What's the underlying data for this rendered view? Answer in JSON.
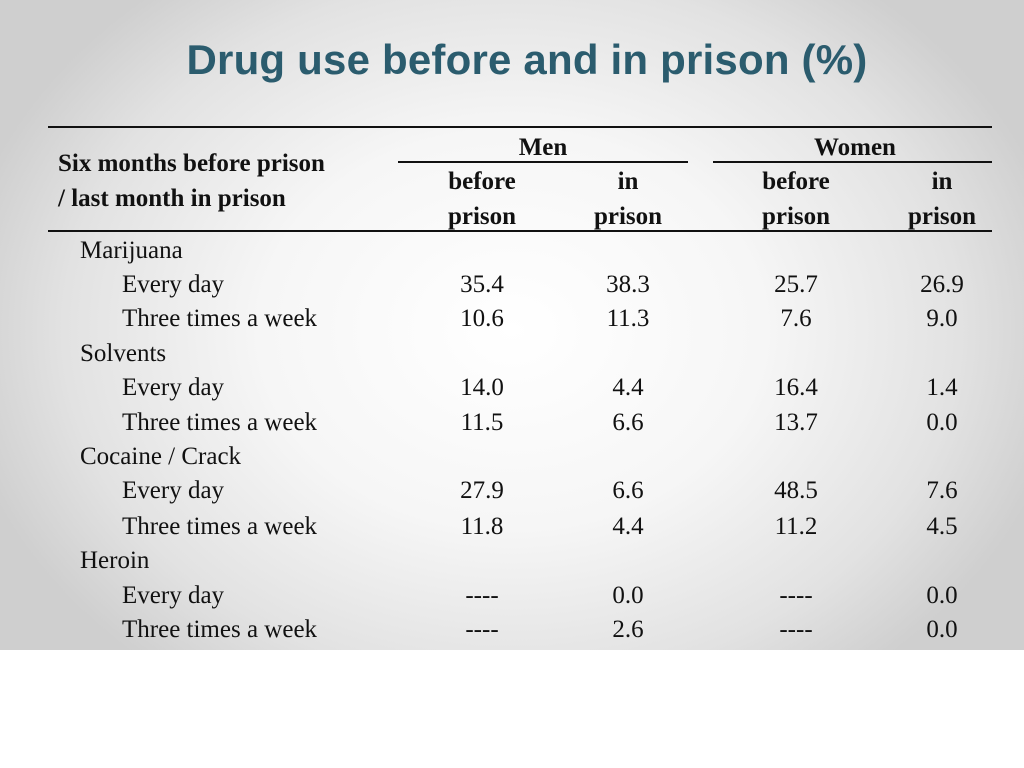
{
  "slide": {
    "title": "Drug use before and in prison (%)"
  },
  "chart_data": {
    "type": "table",
    "row_header": [
      "Six months before prison",
      "/ last month in prison"
    ],
    "groups": [
      {
        "name": "Men",
        "columns": [
          [
            "before",
            "prison"
          ],
          [
            "in",
            "prison"
          ]
        ]
      },
      {
        "name": "Women",
        "columns": [
          [
            "before",
            "prison"
          ],
          [
            "in",
            "prison"
          ]
        ]
      }
    ],
    "sections": [
      {
        "name": "Marijuana",
        "rows": [
          {
            "label": "Every day",
            "values": [
              "35.4",
              "38.3",
              "25.7",
              "26.9"
            ]
          },
          {
            "label": "Three times a week",
            "values": [
              "10.6",
              "11.3",
              "7.6",
              "9.0"
            ]
          }
        ]
      },
      {
        "name": "Solvents",
        "rows": [
          {
            "label": "Every day",
            "values": [
              "14.0",
              "4.4",
              "16.4",
              "1.4"
            ]
          },
          {
            "label": "Three times a week",
            "values": [
              "11.5",
              "6.6",
              "13.7",
              "0.0"
            ]
          }
        ]
      },
      {
        "name": "Cocaine / Crack",
        "rows": [
          {
            "label": "Every day",
            "values": [
              "27.9",
              "6.6",
              "48.5",
              "7.6"
            ]
          },
          {
            "label": "Three times a week",
            "values": [
              "11.8",
              "4.4",
              "11.2",
              "4.5"
            ]
          }
        ]
      },
      {
        "name": "Heroin",
        "rows": [
          {
            "label": "Every day",
            "values": [
              "----",
              "0.0",
              "----",
              "0.0"
            ]
          },
          {
            "label": "Three times a week",
            "values": [
              "----",
              "2.6",
              "----",
              "0.0"
            ]
          }
        ]
      }
    ]
  }
}
